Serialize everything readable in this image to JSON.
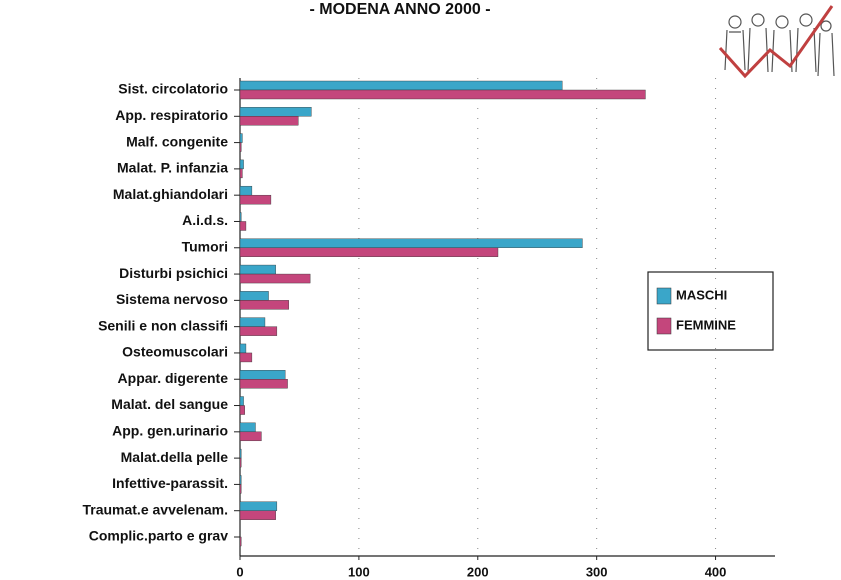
{
  "chart_data": {
    "type": "bar",
    "orientation": "horizontal",
    "title": "- MODENA ANNO 2000 -",
    "categories": [
      "Sist. circolatorio",
      "App. respiratorio",
      "Malf. congenite",
      "Malat. P. infanzia",
      "Malat.ghiandolari",
      "A.i.d.s.",
      "Tumori",
      "Disturbi psichici",
      "Sistema nervoso",
      "Senili e non classifi",
      "Osteomuscolari",
      "Appar. digerente",
      "Malat. del sangue",
      "App. gen.urinario",
      "Malat.della pelle",
      "Infettive-parassit.",
      "Traumat.e avvelenam.",
      "Complic.parto e grav"
    ],
    "series": [
      {
        "name": "MASCHI",
        "color": "#3aa6c9",
        "values": [
          271,
          60,
          2,
          3,
          10,
          1,
          288,
          30,
          24,
          21,
          5,
          38,
          3,
          13,
          1,
          1,
          31,
          0
        ]
      },
      {
        "name": "FEMMINE",
        "color": "#c4467c",
        "values": [
          341,
          49,
          1,
          2,
          26,
          5,
          217,
          59,
          41,
          31,
          10,
          40,
          4,
          18,
          1,
          1,
          30,
          1
        ]
      }
    ],
    "xlim": [
      0,
      450
    ],
    "xticks": [
      0,
      100,
      200,
      300,
      400
    ],
    "grid": true,
    "legend": "right"
  }
}
